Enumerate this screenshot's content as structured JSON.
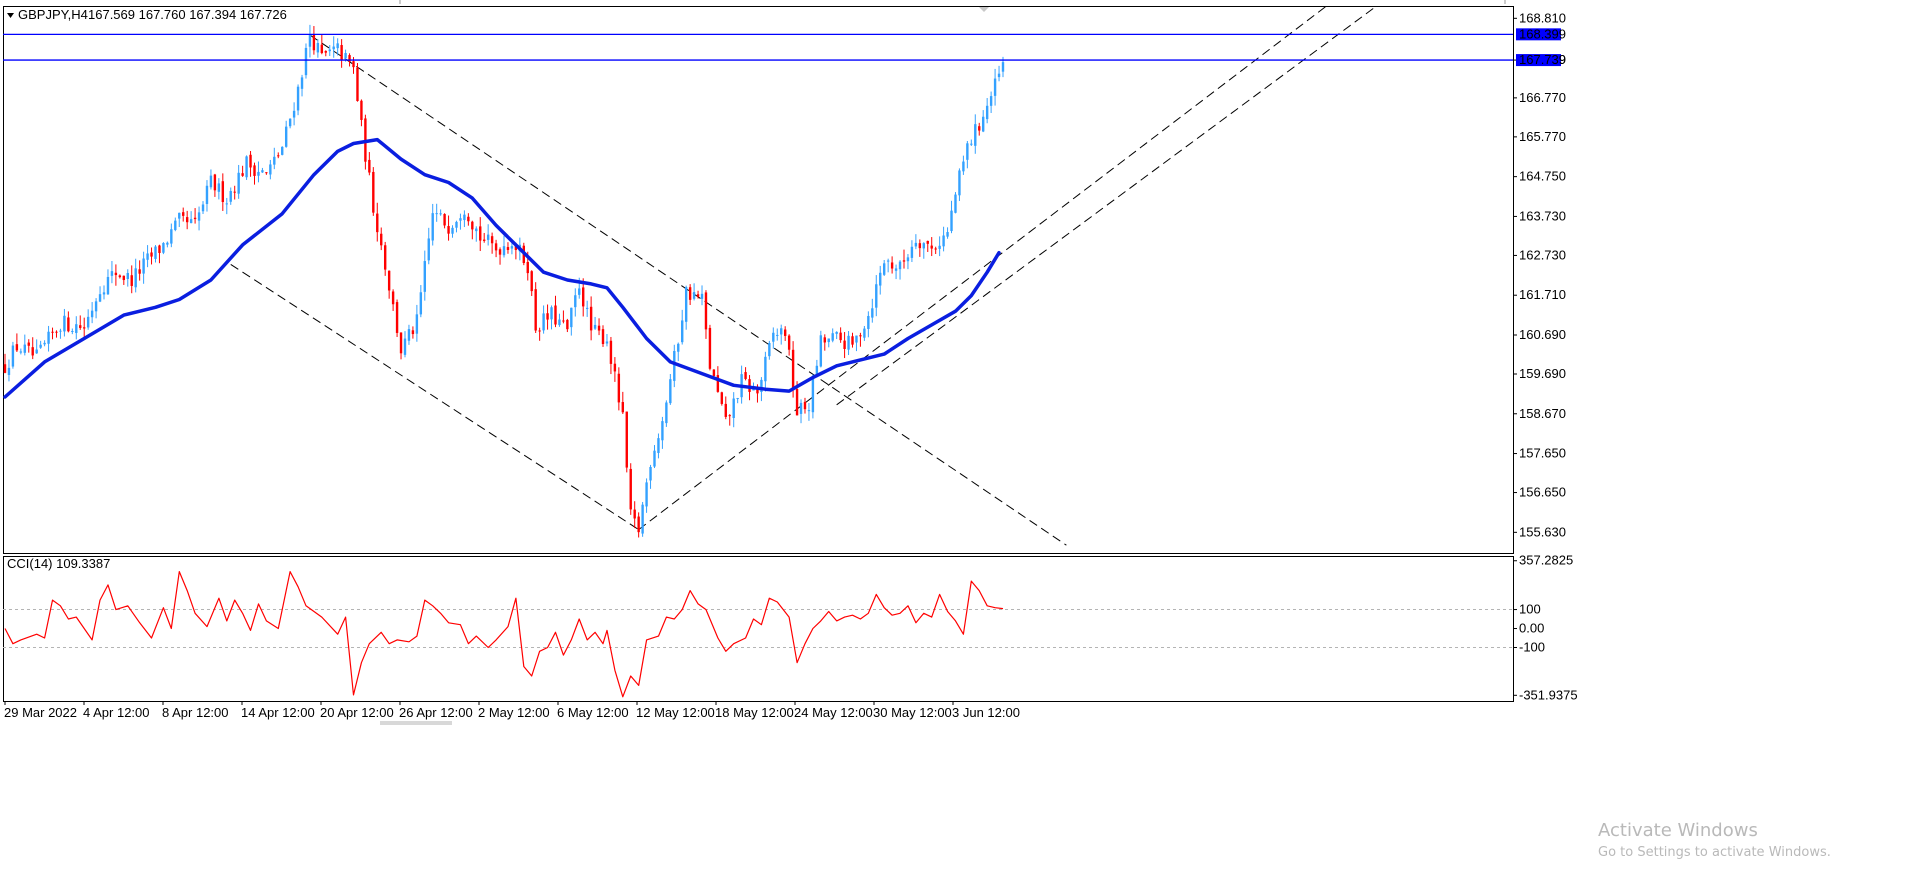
{
  "chart_header": {
    "symbol_timeframe": "GBPJPY,H4",
    "ohlc": "167.569 167.760 167.394 167.726"
  },
  "indicator_header": "CCI(14) 109.3387",
  "watermark": {
    "title": "Activate Windows",
    "subtitle": "Go to Settings to activate Windows."
  },
  "colors": {
    "bull": "#33a1ff",
    "bear": "#ff0000",
    "ma": "#0a1ee0",
    "hline": "#0000ff",
    "cci": "#ff0000",
    "frame": "#000000",
    "dash": "#000000"
  },
  "chart_data": [
    {
      "type": "candlestick",
      "symbol": "GBPJPY",
      "timeframe": "H4",
      "ylim": [
        155.1,
        169.1
      ],
      "y_ticks": [
        "168.810",
        "167.739",
        "166.770",
        "165.770",
        "164.750",
        "163.730",
        "162.730",
        "161.710",
        "160.690",
        "159.690",
        "158.670",
        "157.650",
        "156.650",
        "155.630"
      ],
      "x_ticks": [
        "29 Mar 2022",
        "4 Apr 12:00",
        "8 Apr 12:00",
        "14 Apr 12:00",
        "20 Apr 12:00",
        "26 Apr 12:00",
        "2 May 12:00",
        "6 May 12:00",
        "12 May 12:00",
        "18 May 12:00",
        "24 May 12:00",
        "30 May 12:00",
        "3 Jun 12:00"
      ],
      "horizontal_lines": [
        {
          "value": 168.399,
          "label": "168.399"
        },
        {
          "value": 167.739,
          "label": "167.739"
        }
      ],
      "price_path": [
        [
          0,
          159.9
        ],
        [
          3,
          160.4
        ],
        [
          8,
          160.1
        ],
        [
          14,
          161.0
        ],
        [
          20,
          160.9
        ],
        [
          24,
          161.9
        ],
        [
          28,
          162.3
        ],
        [
          32,
          162.1
        ],
        [
          36,
          162.6
        ],
        [
          40,
          163.0
        ],
        [
          44,
          163.6
        ],
        [
          48,
          163.5
        ],
        [
          52,
          164.6
        ],
        [
          56,
          164.2
        ],
        [
          61,
          165.1
        ],
        [
          66,
          164.8
        ],
        [
          70,
          165.5
        ],
        [
          74,
          167.0
        ],
        [
          77,
          168.4
        ],
        [
          80,
          167.8
        ],
        [
          84,
          168.0
        ],
        [
          88,
          167.5
        ],
        [
          90,
          166.0
        ],
        [
          93,
          164.0
        ],
        [
          96,
          162.5
        ],
        [
          100,
          160.3
        ],
        [
          104,
          161.0
        ],
        [
          108,
          163.8
        ],
        [
          112,
          163.5
        ],
        [
          116,
          164.0
        ],
        [
          120,
          163.2
        ],
        [
          124,
          162.9
        ],
        [
          128,
          163.1
        ],
        [
          132,
          162.5
        ],
        [
          134,
          160.9
        ],
        [
          138,
          161.2
        ],
        [
          142,
          160.8
        ],
        [
          145,
          162.0
        ],
        [
          148,
          160.8
        ],
        [
          152,
          160.6
        ],
        [
          156,
          158.5
        ],
        [
          158,
          156.0
        ],
        [
          160,
          155.7
        ],
        [
          163,
          157.5
        ],
        [
          166,
          158.5
        ],
        [
          170,
          160.6
        ],
        [
          172,
          161.8
        ],
        [
          176,
          161.6
        ],
        [
          178,
          159.9
        ],
        [
          182,
          158.4
        ],
        [
          186,
          159.5
        ],
        [
          190,
          159.2
        ],
        [
          194,
          160.7
        ],
        [
          197,
          160.8
        ],
        [
          200,
          158.7
        ],
        [
          203,
          158.9
        ],
        [
          206,
          160.5
        ],
        [
          210,
          160.6
        ],
        [
          214,
          160.4
        ],
        [
          218,
          161.2
        ],
        [
          222,
          162.6
        ],
        [
          226,
          162.4
        ],
        [
          230,
          163.2
        ],
        [
          234,
          162.9
        ],
        [
          238,
          163.3
        ],
        [
          240,
          164.3
        ],
        [
          243,
          165.5
        ],
        [
          246,
          166.1
        ],
        [
          249,
          166.8
        ],
        [
          252,
          167.6
        ]
      ],
      "series": [
        {
          "kind": "moving_average",
          "values": [
            [
              0,
              159.1
            ],
            [
              10,
              160.0
            ],
            [
              20,
              160.6
            ],
            [
              30,
              161.2
            ],
            [
              38,
              161.4
            ],
            [
              44,
              161.6
            ],
            [
              52,
              162.1
            ],
            [
              60,
              163.0
            ],
            [
              70,
              163.8
            ],
            [
              78,
              164.8
            ],
            [
              84,
              165.4
            ],
            [
              88,
              165.6
            ],
            [
              94,
              165.7
            ],
            [
              100,
              165.2
            ],
            [
              106,
              164.8
            ],
            [
              112,
              164.6
            ],
            [
              118,
              164.2
            ],
            [
              124,
              163.5
            ],
            [
              130,
              162.9
            ],
            [
              136,
              162.3
            ],
            [
              142,
              162.1
            ],
            [
              148,
              162.0
            ],
            [
              152,
              161.9
            ],
            [
              156,
              161.4
            ],
            [
              162,
              160.6
            ],
            [
              168,
              160.0
            ],
            [
              176,
              159.7
            ],
            [
              184,
              159.4
            ],
            [
              192,
              159.3
            ],
            [
              198,
              159.25
            ],
            [
              204,
              159.6
            ],
            [
              210,
              159.9
            ],
            [
              216,
              160.05
            ],
            [
              222,
              160.2
            ],
            [
              228,
              160.6
            ],
            [
              234,
              160.95
            ],
            [
              240,
              161.3
            ],
            [
              244,
              161.7
            ],
            [
              248,
              162.3
            ],
            [
              251,
              162.8
            ]
          ]
        }
      ],
      "trendlines": [
        {
          "style": "dashed",
          "from": [
            77,
            168.38
          ],
          "to": [
            268,
            155.3
          ]
        },
        {
          "style": "dashed",
          "from": [
            57,
            162.5
          ],
          "to": [
            160,
            155.7
          ]
        },
        {
          "style": "dashed",
          "from": [
            160,
            155.7
          ],
          "to": [
            345,
            170.0
          ]
        },
        {
          "style": "dashed",
          "from": [
            210,
            158.9
          ],
          "to": [
            358,
            170.0
          ]
        }
      ],
      "ymarks_rendered_by_script": true
    },
    {
      "type": "line",
      "name": "CCI(14)",
      "ylim": [
        -382,
        377
      ],
      "y_ticks": [
        "357.2825",
        "100",
        "0.00",
        "-100",
        "-351.9375"
      ],
      "levels": [
        100,
        -100
      ],
      "values": [
        [
          0,
          0
        ],
        [
          2,
          -80
        ],
        [
          4,
          -60
        ],
        [
          8,
          -30
        ],
        [
          10,
          -50
        ],
        [
          12,
          150
        ],
        [
          14,
          120
        ],
        [
          16,
          50
        ],
        [
          18,
          60
        ],
        [
          22,
          -60
        ],
        [
          24,
          150
        ],
        [
          26,
          230
        ],
        [
          28,
          100
        ],
        [
          31,
          120
        ],
        [
          34,
          30
        ],
        [
          37,
          -50
        ],
        [
          40,
          110
        ],
        [
          42,
          0
        ],
        [
          44,
          300
        ],
        [
          46,
          200
        ],
        [
          48,
          80
        ],
        [
          51,
          10
        ],
        [
          54,
          160
        ],
        [
          56,
          40
        ],
        [
          58,
          150
        ],
        [
          60,
          80
        ],
        [
          62,
          -10
        ],
        [
          64,
          130
        ],
        [
          66,
          40
        ],
        [
          69,
          0
        ],
        [
          72,
          300
        ],
        [
          74,
          220
        ],
        [
          76,
          120
        ],
        [
          80,
          60
        ],
        [
          84,
          -30
        ],
        [
          86,
          60
        ],
        [
          88,
          -350
        ],
        [
          90,
          -180
        ],
        [
          92,
          -80
        ],
        [
          95,
          -20
        ],
        [
          97,
          -80
        ],
        [
          99,
          -60
        ],
        [
          102,
          -70
        ],
        [
          104,
          -40
        ],
        [
          106,
          150
        ],
        [
          108,
          120
        ],
        [
          110,
          80
        ],
        [
          112,
          30
        ],
        [
          115,
          20
        ],
        [
          117,
          -80
        ],
        [
          119,
          -40
        ],
        [
          122,
          -100
        ],
        [
          124,
          -60
        ],
        [
          127,
          10
        ],
        [
          129,
          160
        ],
        [
          131,
          -200
        ],
        [
          133,
          -250
        ],
        [
          135,
          -120
        ],
        [
          137,
          -100
        ],
        [
          139,
          -20
        ],
        [
          141,
          -140
        ],
        [
          143,
          -60
        ],
        [
          145,
          50
        ],
        [
          147,
          -60
        ],
        [
          149,
          -20
        ],
        [
          151,
          -80
        ],
        [
          152,
          -10
        ],
        [
          154,
          -220
        ],
        [
          156,
          -360
        ],
        [
          158,
          -250
        ],
        [
          160,
          -300
        ],
        [
          162,
          -60
        ],
        [
          165,
          -40
        ],
        [
          167,
          60
        ],
        [
          169,
          50
        ],
        [
          171,
          100
        ],
        [
          173,
          200
        ],
        [
          175,
          130
        ],
        [
          177,
          100
        ],
        [
          180,
          -50
        ],
        [
          182,
          -120
        ],
        [
          184,
          -80
        ],
        [
          187,
          -50
        ],
        [
          189,
          50
        ],
        [
          191,
          20
        ],
        [
          193,
          160
        ],
        [
          195,
          140
        ],
        [
          198,
          60
        ],
        [
          200,
          -180
        ],
        [
          202,
          -80
        ],
        [
          204,
          0
        ],
        [
          206,
          40
        ],
        [
          208,
          90
        ],
        [
          210,
          40
        ],
        [
          212,
          60
        ],
        [
          214,
          70
        ],
        [
          216,
          50
        ],
        [
          218,
          80
        ],
        [
          220,
          180
        ],
        [
          222,
          110
        ],
        [
          224,
          70
        ],
        [
          226,
          80
        ],
        [
          228,
          120
        ],
        [
          230,
          30
        ],
        [
          232,
          80
        ],
        [
          234,
          60
        ],
        [
          236,
          180
        ],
        [
          238,
          90
        ],
        [
          240,
          40
        ],
        [
          242,
          -30
        ],
        [
          244,
          250
        ],
        [
          246,
          200
        ],
        [
          248,
          120
        ],
        [
          250,
          110
        ],
        [
          252,
          105
        ]
      ]
    }
  ]
}
